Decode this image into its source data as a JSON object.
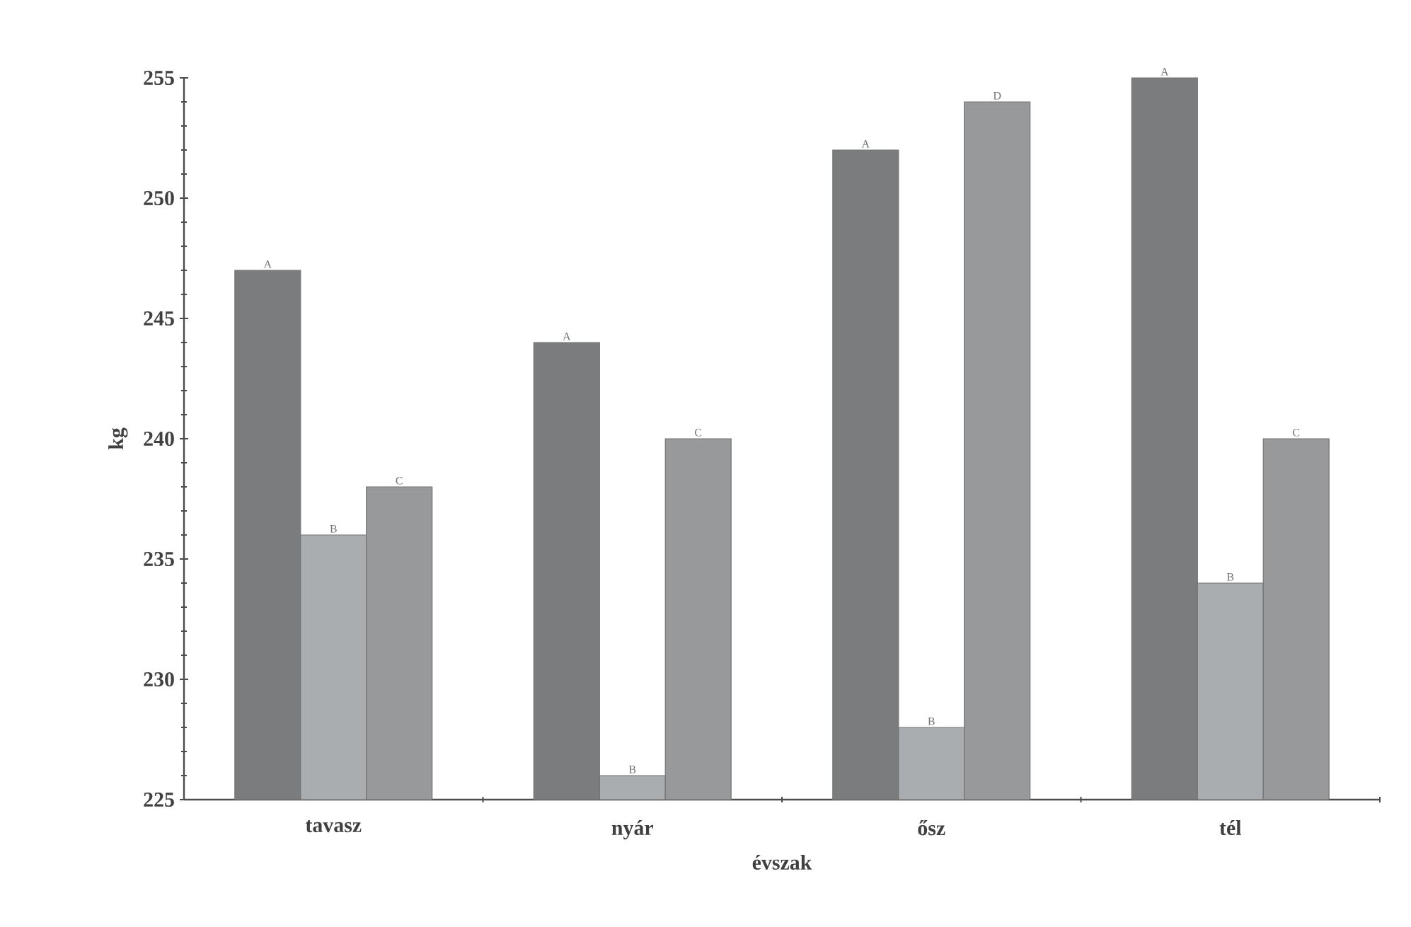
{
  "chart_data": {
    "type": "bar",
    "xlabel": "évszak",
    "ylabel": "kg",
    "categories": [
      "tavasz",
      "nyár",
      "ősz",
      "tél"
    ],
    "series": [
      {
        "color": "#7a7c7e",
        "values": [
          247,
          244,
          252,
          255
        ],
        "value_labels": [
          "A",
          "A",
          "A",
          "A"
        ]
      },
      {
        "color": "#a9adb0",
        "values": [
          236,
          226,
          228,
          234
        ],
        "value_labels": [
          "B",
          "B",
          "B",
          "B"
        ]
      },
      {
        "color": "#97999b",
        "values": [
          238,
          240,
          254,
          240
        ],
        "value_labels": [
          "C",
          "C",
          "D",
          "C"
        ]
      }
    ],
    "ylim": [
      225,
      255
    ],
    "yticks": [
      225,
      230,
      235,
      240,
      245,
      250,
      255
    ],
    "grid": false
  }
}
